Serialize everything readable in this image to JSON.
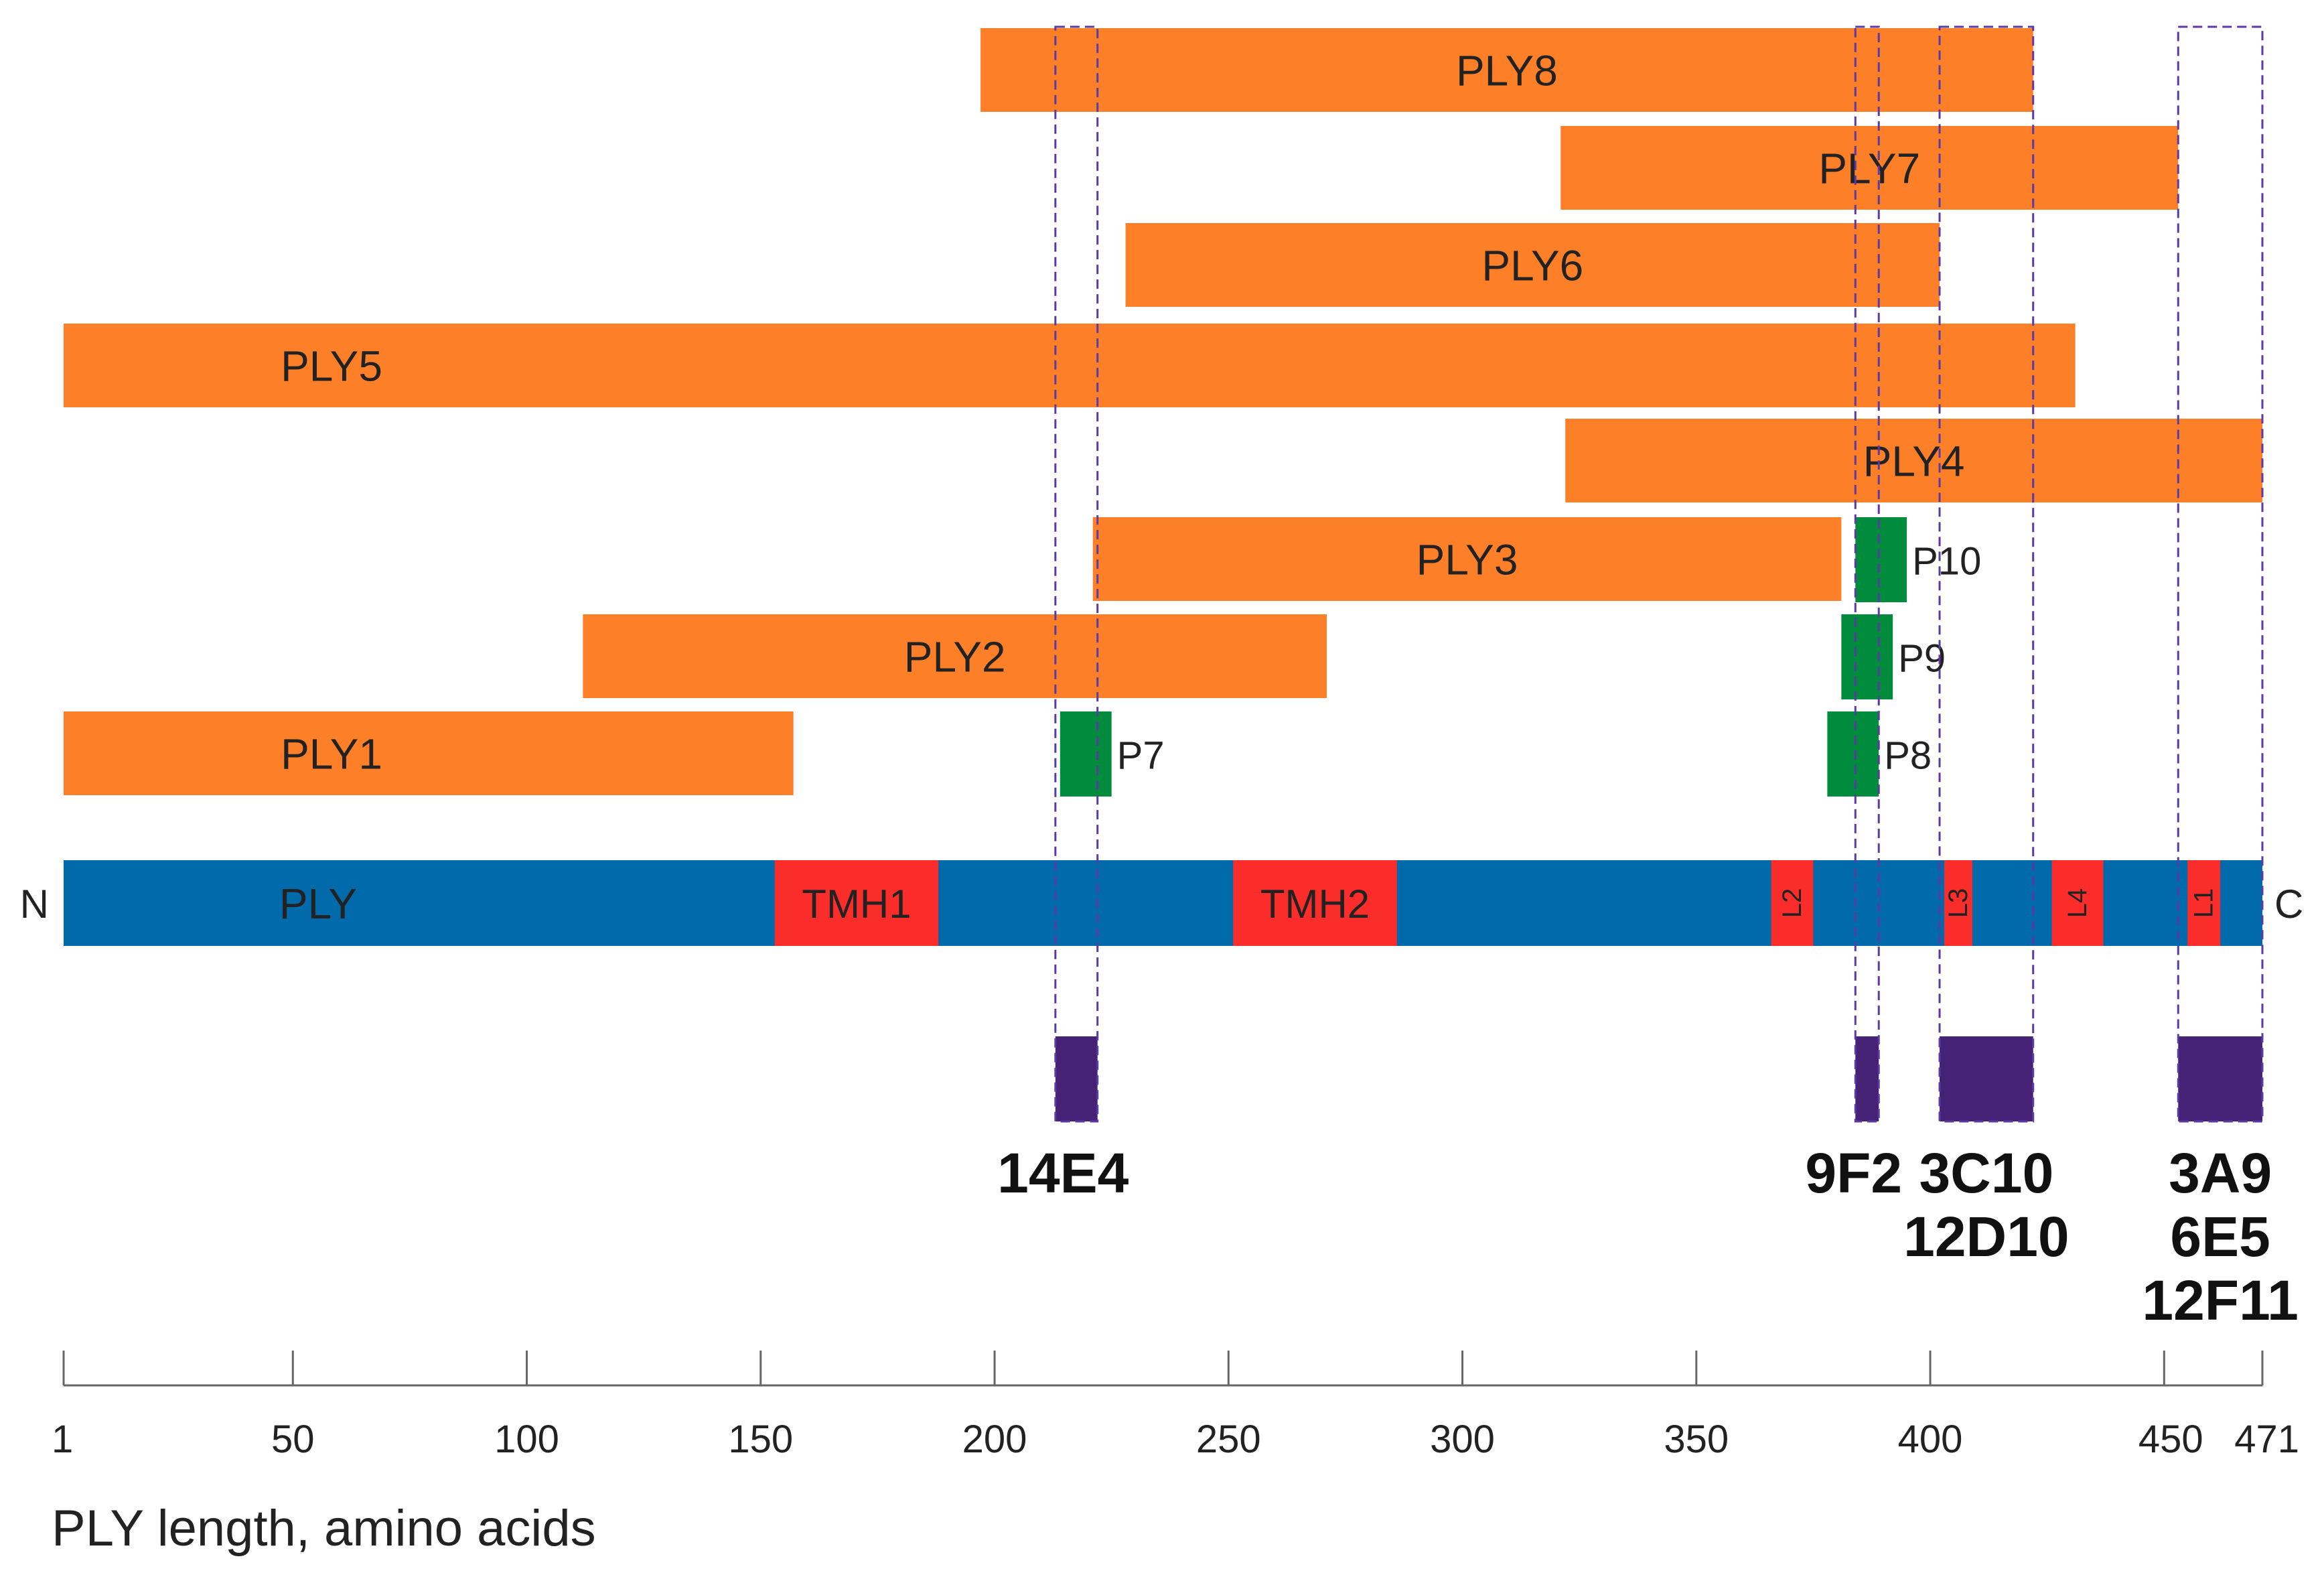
{
  "colors": {
    "fragment": "#fd7f28",
    "protein": "#006aab",
    "region": "#fa2d2b",
    "peptide": "#008c3c",
    "epitope": "#452276",
    "guide": "#5a3aa3",
    "axis": "#666666"
  },
  "protein": {
    "label": "PLY",
    "n_terminus": "N",
    "c_terminus": "C",
    "start": 1,
    "end": 471,
    "regions": [
      {
        "label": "TMH1",
        "start": 153,
        "end": 188,
        "vertical": false
      },
      {
        "label": "TMH2",
        "start": 251,
        "end": 286,
        "vertical": false
      },
      {
        "label": "L2",
        "start": 366,
        "end": 375,
        "vertical": true
      },
      {
        "label": "L3",
        "start": 403,
        "end": 409,
        "vertical": true
      },
      {
        "label": "L4",
        "start": 426,
        "end": 437,
        "vertical": true
      },
      {
        "label": "L1",
        "start": 455,
        "end": 462,
        "vertical": true
      }
    ]
  },
  "fragments": [
    {
      "label": "PLY8",
      "start": 197,
      "end": 422
    },
    {
      "label": "PLY7",
      "start": 321,
      "end": 453
    },
    {
      "label": "PLY6",
      "start": 228,
      "end": 402
    },
    {
      "label": "PLY5",
      "start": 1,
      "end": 431
    },
    {
      "label": "PLY4",
      "start": 322,
      "end": 471
    },
    {
      "label": "PLY3",
      "start": 221,
      "end": 381
    },
    {
      "label": "PLY2",
      "start": 112,
      "end": 271
    },
    {
      "label": "PLY1",
      "start": 1,
      "end": 157
    }
  ],
  "peptides": [
    {
      "label": "P10",
      "start": 384,
      "end": 395
    },
    {
      "label": "P9",
      "start": 381,
      "end": 392
    },
    {
      "label": "P8",
      "start": 378,
      "end": 389
    },
    {
      "label": "P7",
      "start": 214,
      "end": 225
    }
  ],
  "epitopes": [
    {
      "start": 213,
      "end": 222,
      "antibodies": [
        "14E4"
      ]
    },
    {
      "start": 384,
      "end": 389,
      "antibodies": [
        "9F2"
      ]
    },
    {
      "start": 402,
      "end": 422,
      "antibodies": [
        "3C10",
        "12D10"
      ]
    },
    {
      "start": 453,
      "end": 471,
      "antibodies": [
        "3A9",
        "6E5",
        "12F11"
      ]
    }
  ],
  "axis": {
    "label": "PLY length, amino acids",
    "min": 1,
    "max": 471,
    "ticks": [
      1,
      50,
      100,
      150,
      200,
      250,
      300,
      350,
      400,
      450,
      471
    ]
  }
}
